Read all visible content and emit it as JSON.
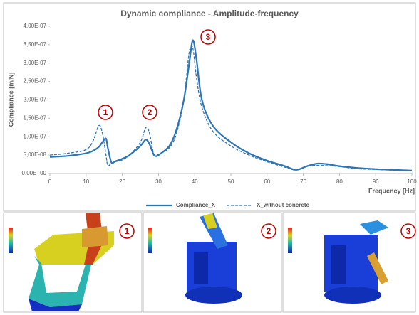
{
  "chart_data": {
    "type": "line",
    "title": "Dynamic compliance - Amplitude-frequency",
    "x_label": "Frequency [Hz]",
    "y_label": "Compliance [m/N]",
    "x": [
      0,
      5,
      10,
      12,
      13.5,
      14.5,
      15.5,
      16,
      17,
      18,
      20,
      22,
      25,
      26.5,
      27.5,
      28.5,
      29,
      30,
      33,
      35,
      37,
      38.5,
      39.5,
      40.5,
      42,
      45,
      50,
      55,
      60,
      65,
      68,
      71,
      74,
      77,
      80,
      85,
      90,
      95,
      100
    ],
    "series": [
      {
        "name": "Compliance_X",
        "color": "#2e75b6",
        "dash": false,
        "values": [
          4.5e-08,
          4.8e-08,
          5.5e-08,
          6.2e-08,
          7.2e-08,
          8.5e-08,
          9.5e-08,
          7e-08,
          3e-08,
          3.3e-08,
          4e-08,
          5e-08,
          7.5e-08,
          9.2e-08,
          8e-08,
          5.5e-08,
          4.8e-08,
          5e-08,
          7.5e-08,
          1.2e-07,
          2e-07,
          3e-07,
          3.62e-07,
          3.1e-07,
          2e-07,
          1.3e-07,
          8.5e-08,
          5.5e-08,
          3.5e-08,
          2e-08,
          1e-08,
          2e-08,
          2.7e-08,
          2.5e-08,
          2e-08,
          1.5e-08,
          1.2e-08,
          1e-08,
          8e-09
        ]
      },
      {
        "name": "X_without concrete",
        "color": "#2e75b6",
        "dash": true,
        "values": [
          5e-08,
          5.5e-08,
          6.5e-08,
          9e-08,
          1.3e-07,
          1.1e-07,
          5e-08,
          2.2e-08,
          2.8e-08,
          3.2e-08,
          3.7e-08,
          5e-08,
          8.5e-08,
          1.25e-07,
          1.1e-07,
          6e-08,
          5e-08,
          5.2e-08,
          7e-08,
          1.1e-07,
          2e-07,
          3.3e-07,
          3.4e-07,
          2.6e-07,
          1.8e-07,
          1.15e-07,
          7.5e-08,
          5e-08,
          3.2e-08,
          1.7e-08,
          1e-08,
          2e-08,
          2.2e-08,
          2.1e-08,
          1.9e-08,
          1.3e-08,
          1.1e-08,
          9e-09,
          8e-09
        ]
      }
    ],
    "xlim": [
      0,
      100
    ],
    "xticks": [
      0,
      10,
      20,
      30,
      40,
      50,
      60,
      70,
      80,
      90,
      100
    ],
    "ylim": [
      0,
      4e-07
    ],
    "yticks": [
      {
        "value": 0,
        "label": "0,00E+00"
      },
      {
        "value": 5e-08,
        "label": "5,00E-08"
      },
      {
        "value": 1e-07,
        "label": "1,00E-07"
      },
      {
        "value": 1.5e-07,
        "label": "1,50E-07"
      },
      {
        "value": 2e-07,
        "label": "2,00E-07"
      },
      {
        "value": 2.5e-07,
        "label": "2,50E-07"
      },
      {
        "value": 3e-07,
        "label": "3,00E-07"
      },
      {
        "value": 3.5e-07,
        "label": "3,50E-07"
      },
      {
        "value": 4e-07,
        "label": "4,00E-07"
      }
    ],
    "annotations": [
      "1",
      "2",
      "3"
    ],
    "legend": "bottom"
  },
  "panels": [
    {
      "label": "1"
    },
    {
      "label": "2"
    },
    {
      "label": "3"
    }
  ]
}
